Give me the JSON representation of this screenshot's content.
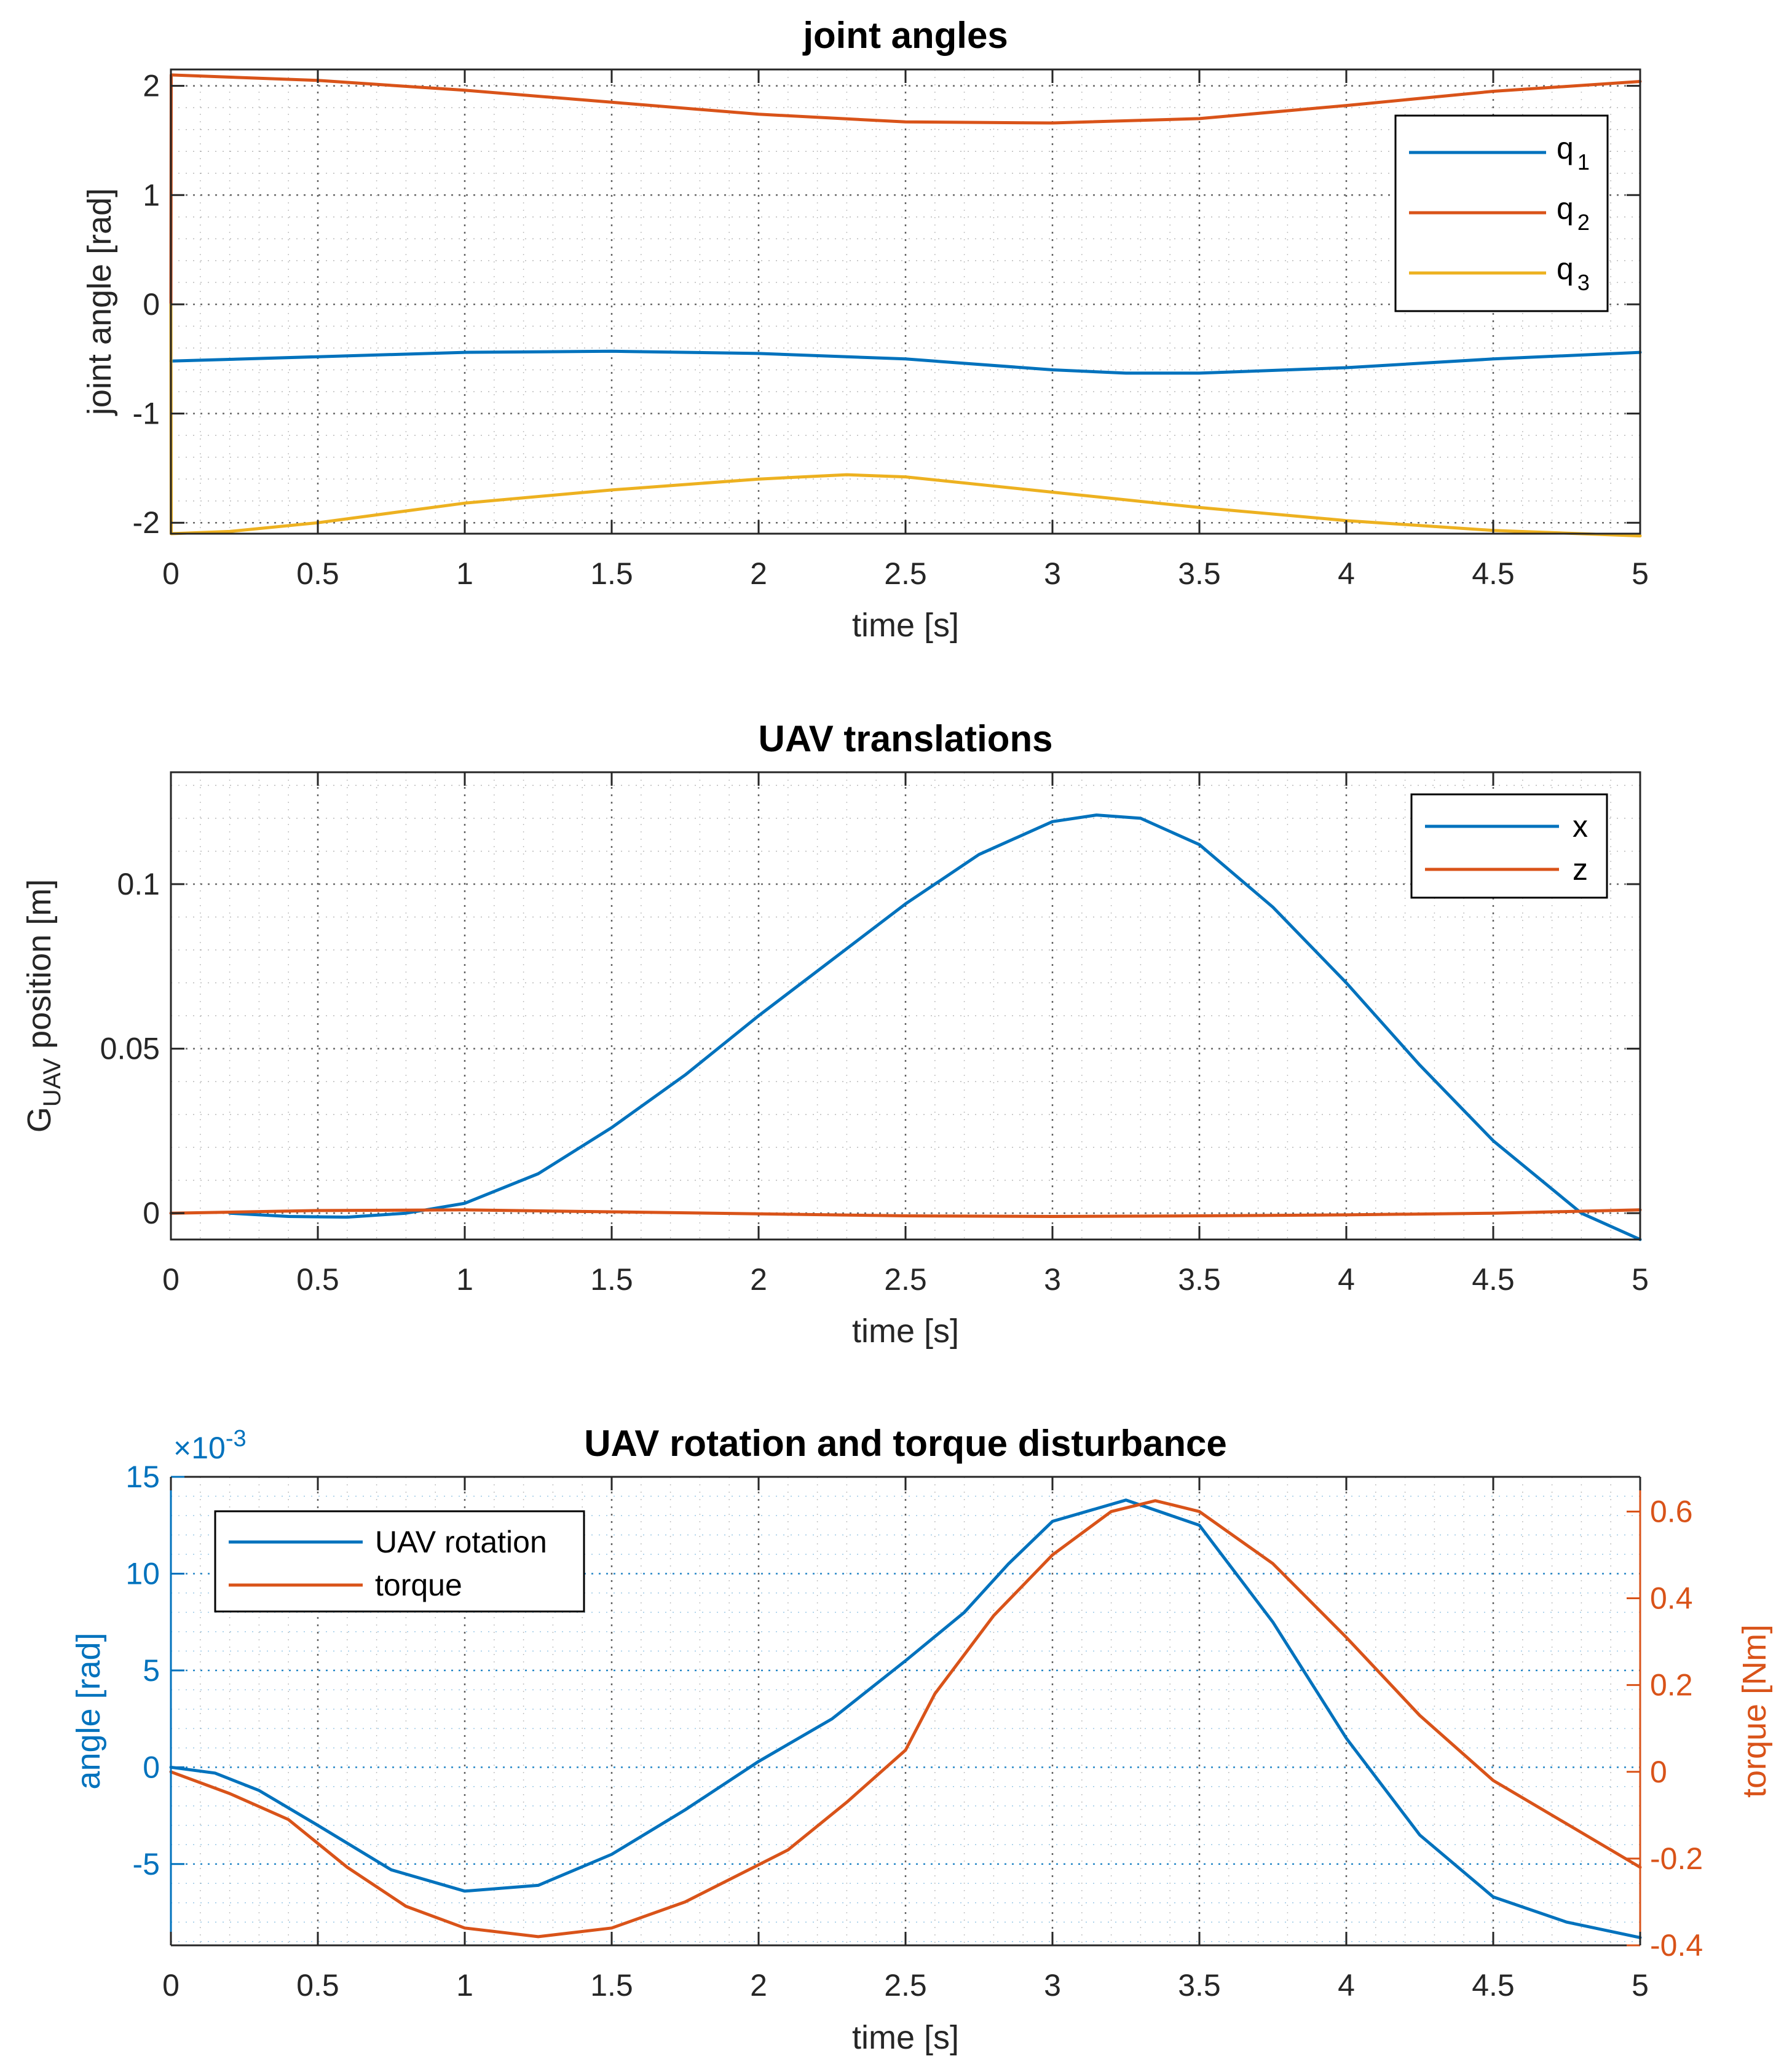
{
  "colors": {
    "blue": "#0072BD",
    "orange": "#D95319",
    "yellow": "#EDB120",
    "axis": "#262626",
    "grid": "#4d4d4d"
  },
  "chart_data": [
    {
      "type": "line",
      "title": "joint angles",
      "xlabel": "time [s]",
      "ylabel": "joint angle [rad]",
      "xlim": [
        0,
        5
      ],
      "ylim": [
        -2.1,
        2.15
      ],
      "xticks": [
        0,
        0.5,
        1,
        1.5,
        2,
        2.5,
        3,
        3.5,
        4,
        4.5,
        5
      ],
      "xtick_labels": [
        "0",
        "0.5",
        "1",
        "1.5",
        "2",
        "2.5",
        "3",
        "3.5",
        "4",
        "4.5",
        "5"
      ],
      "yticks": [
        -2,
        -1,
        0,
        1,
        2
      ],
      "ytick_labels": [
        "-2",
        "-1",
        "0",
        "1",
        "2"
      ],
      "grid": true,
      "minor_grid": true,
      "legend_position": "top-right",
      "series": [
        {
          "name": "q1",
          "label_main": "q",
          "label_sub": "1",
          "color": "#0072BD",
          "x": [
            0,
            0.5,
            1,
            1.5,
            2,
            2.5,
            3,
            3.25,
            3.5,
            4,
            4.5,
            5
          ],
          "y": [
            -0.52,
            -0.48,
            -0.44,
            -0.43,
            -0.45,
            -0.5,
            -0.6,
            -0.63,
            -0.63,
            -0.58,
            -0.5,
            -0.44
          ]
        },
        {
          "name": "q2",
          "label_main": "q",
          "label_sub": "2",
          "color": "#D95319",
          "x": [
            0,
            0.001,
            0.5,
            1,
            1.5,
            2,
            2.5,
            3,
            3.5,
            4,
            4.5,
            5
          ],
          "y": [
            0,
            2.1,
            2.05,
            1.96,
            1.85,
            1.74,
            1.67,
            1.66,
            1.7,
            1.82,
            1.95,
            2.04
          ]
        },
        {
          "name": "q3",
          "label_main": "q",
          "label_sub": "3",
          "color": "#EDB120",
          "x": [
            0,
            0.001,
            0.2,
            0.5,
            1,
            1.5,
            2,
            2.3,
            2.5,
            3,
            3.5,
            4,
            4.5,
            5
          ],
          "y": [
            0,
            -2.1,
            -2.08,
            -2.0,
            -1.82,
            -1.7,
            -1.6,
            -1.56,
            -1.58,
            -1.72,
            -1.86,
            -1.98,
            -2.07,
            -2.12
          ]
        }
      ]
    },
    {
      "type": "line",
      "title": "UAV translations",
      "xlabel": "time [s]",
      "ylabel_main": "G",
      "ylabel_sub": "UAV",
      "ylabel_rest": " position [m]",
      "xlim": [
        0,
        5
      ],
      "ylim": [
        -0.008,
        0.134
      ],
      "xticks": [
        0,
        0.5,
        1,
        1.5,
        2,
        2.5,
        3,
        3.5,
        4,
        4.5,
        5
      ],
      "xtick_labels": [
        "0",
        "0.5",
        "1",
        "1.5",
        "2",
        "2.5",
        "3",
        "3.5",
        "4",
        "4.5",
        "5"
      ],
      "yticks": [
        0,
        0.05,
        0.1
      ],
      "ytick_labels": [
        "0",
        "0.05",
        "0.1"
      ],
      "grid": true,
      "minor_grid": true,
      "legend_position": "top-right",
      "series": [
        {
          "name": "x",
          "color": "#0072BD",
          "x": [
            0.2,
            0.4,
            0.6,
            0.8,
            1.0,
            1.25,
            1.5,
            1.75,
            2.0,
            2.25,
            2.5,
            2.75,
            3.0,
            3.15,
            3.3,
            3.5,
            3.75,
            4.0,
            4.25,
            4.5,
            4.8,
            5.0
          ],
          "y": [
            0,
            -0.001,
            -0.0012,
            0,
            0.003,
            0.012,
            0.026,
            0.042,
            0.06,
            0.077,
            0.094,
            0.109,
            0.119,
            0.121,
            0.12,
            0.112,
            0.093,
            0.07,
            0.045,
            0.022,
            0,
            -0.008
          ]
        },
        {
          "name": "z",
          "color": "#D95319",
          "x": [
            0,
            0.5,
            1,
            1.5,
            2,
            2.5,
            3,
            3.5,
            4,
            4.5,
            5
          ],
          "y": [
            0,
            0.0008,
            0.001,
            0.0004,
            -0.0002,
            -0.0008,
            -0.001,
            -0.0008,
            -0.0005,
            0,
            0.001
          ]
        }
      ]
    },
    {
      "type": "line",
      "title": "UAV rotation and torque disturbance",
      "xlabel": "time [s]",
      "ylabel_left": "angle [rad]",
      "ylabel_right": "torque [Nm]",
      "exponent_label": "×10",
      "exponent_power": "-3",
      "xlim": [
        0,
        5
      ],
      "ylim_left": [
        -9.2,
        15
      ],
      "ylim_right": [
        -0.4,
        0.68
      ],
      "xticks": [
        0,
        0.5,
        1,
        1.5,
        2,
        2.5,
        3,
        3.5,
        4,
        4.5,
        5
      ],
      "xtick_labels": [
        "0",
        "0.5",
        "1",
        "1.5",
        "2",
        "2.5",
        "3",
        "3.5",
        "4",
        "4.5",
        "5"
      ],
      "yticks_left": [
        -5,
        0,
        5,
        10,
        15
      ],
      "ytick_labels_left": [
        "-5",
        "0",
        "5",
        "10",
        "15"
      ],
      "yticks_right": [
        -0.4,
        -0.2,
        0,
        0.2,
        0.4,
        0.6
      ],
      "ytick_labels_right": [
        "-0.4",
        "-0.2",
        "0",
        "0.2",
        "0.4",
        "0.6"
      ],
      "grid": true,
      "minor_grid": true,
      "legend_position": "top-left",
      "series": [
        {
          "name": "UAV rotation",
          "axis": "left",
          "color": "#0072BD",
          "x": [
            0,
            0.15,
            0.3,
            0.5,
            0.75,
            1.0,
            1.25,
            1.5,
            1.75,
            2.0,
            2.25,
            2.5,
            2.7,
            2.85,
            3.0,
            3.25,
            3.5,
            3.75,
            4.0,
            4.25,
            4.5,
            4.75,
            5.0
          ],
          "y": [
            0,
            -0.3,
            -1.2,
            -3.0,
            -5.3,
            -6.4,
            -6.1,
            -4.5,
            -2.2,
            0.3,
            2.5,
            5.5,
            8.0,
            10.5,
            12.7,
            13.8,
            12.5,
            7.5,
            1.5,
            -3.5,
            -6.7,
            -8.0,
            -8.8
          ]
        },
        {
          "name": "torque",
          "axis": "right",
          "color": "#D95319",
          "x": [
            0,
            0.2,
            0.4,
            0.6,
            0.8,
            1.0,
            1.25,
            1.5,
            1.75,
            2.1,
            2.3,
            2.5,
            2.6,
            2.8,
            3.0,
            3.2,
            3.35,
            3.5,
            3.75,
            4.0,
            4.25,
            4.5,
            4.75,
            5.0
          ],
          "y": [
            0,
            -0.05,
            -0.11,
            -0.22,
            -0.31,
            -0.36,
            -0.38,
            -0.36,
            -0.3,
            -0.18,
            -0.07,
            0.05,
            0.18,
            0.36,
            0.5,
            0.6,
            0.625,
            0.6,
            0.48,
            0.31,
            0.13,
            -0.02,
            -0.12,
            -0.22
          ]
        }
      ]
    }
  ]
}
